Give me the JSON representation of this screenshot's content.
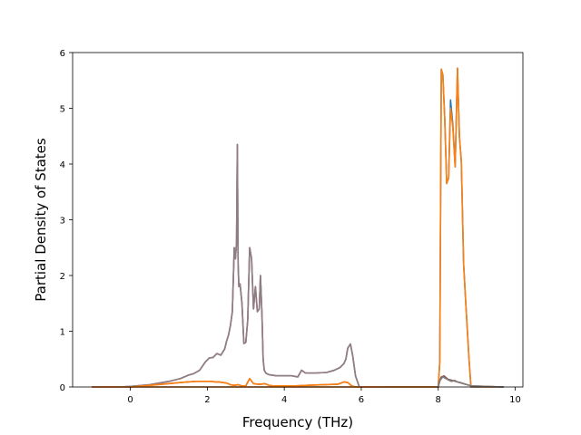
{
  "chart_data": {
    "type": "line",
    "title": "",
    "xlabel": "Frequency (THz)",
    "ylabel": "Partial Density of States",
    "xlim": [
      -1.5,
      10.2
    ],
    "ylim": [
      0,
      6
    ],
    "xticks": [
      0,
      2,
      4,
      6,
      8,
      10
    ],
    "yticks": [
      0,
      1,
      2,
      3,
      4,
      5,
      6
    ],
    "grid": false,
    "legend": "none",
    "series": [
      {
        "color": "#1f77b4",
        "x": [
          -1.0,
          8.0,
          8.04,
          8.08,
          8.12,
          8.17,
          8.22,
          8.27,
          8.32,
          8.38,
          8.44,
          8.5,
          8.55,
          8.6,
          8.66,
          8.72,
          8.8,
          8.85,
          8.9,
          9.7
        ],
        "y": [
          0,
          0,
          0.45,
          5.7,
          5.6,
          4.8,
          3.65,
          3.75,
          5.15,
          4.7,
          3.95,
          5.72,
          4.5,
          4.05,
          2.2,
          1.45,
          0.5,
          0,
          0,
          0
        ]
      },
      {
        "color": "#ff7f0e",
        "x": [
          -1.0,
          8.0,
          8.04,
          8.08,
          8.12,
          8.17,
          8.22,
          8.27,
          8.32,
          8.38,
          8.44,
          8.5,
          8.55,
          8.6,
          8.66,
          8.72,
          8.8,
          8.85,
          8.9,
          9.7
        ],
        "y": [
          0,
          0,
          0.45,
          5.7,
          5.6,
          4.8,
          3.65,
          3.75,
          5.0,
          4.65,
          3.95,
          5.72,
          4.5,
          4.05,
          2.2,
          1.45,
          0.5,
          0,
          0,
          0
        ]
      },
      {
        "color": "#8c564b",
        "x": [
          -1.0,
          0.0,
          0.5,
          1.0,
          1.3,
          1.5,
          1.7,
          1.85,
          2.0,
          2.1,
          2.2,
          2.3,
          2.4,
          2.5,
          2.6,
          2.7,
          2.8,
          2.9,
          3.0,
          3.1,
          3.2,
          3.3,
          3.4,
          3.5,
          3.6,
          3.7,
          4.0,
          4.3,
          4.6,
          5.0,
          5.4,
          5.55,
          5.65,
          5.75,
          5.85,
          6.0,
          8.0,
          8.03,
          8.08,
          8.15,
          8.25,
          8.35,
          8.45,
          8.55,
          8.65,
          8.75,
          8.85,
          9.7
        ],
        "y": [
          0,
          0,
          0.03,
          0.06,
          0.08,
          0.09,
          0.1,
          0.1,
          0.1,
          0.1,
          0.09,
          0.09,
          0.08,
          0.07,
          0.04,
          0.03,
          0.04,
          0.02,
          0.02,
          0.15,
          0.06,
          0.05,
          0.05,
          0.06,
          0.03,
          0.02,
          0.02,
          0.02,
          0.03,
          0.04,
          0.05,
          0.09,
          0.08,
          0.02,
          0,
          0,
          0,
          0.1,
          0.18,
          0.2,
          0.14,
          0.12,
          0.1,
          0.08,
          0.06,
          0.04,
          0.02,
          0
        ]
      },
      {
        "color": "#7f7f7f",
        "x": [
          -1.0,
          -0.3,
          0.0,
          0.5,
          1.0,
          1.3,
          1.5,
          1.65,
          1.8,
          1.95,
          2.05,
          2.15,
          2.25,
          2.35,
          2.45,
          2.5,
          2.55,
          2.6,
          2.65,
          2.7,
          2.73,
          2.76,
          2.78,
          2.8,
          2.82,
          2.85,
          2.9,
          2.95,
          3.0,
          3.05,
          3.1,
          3.15,
          3.2,
          3.25,
          3.3,
          3.35,
          3.38,
          3.42,
          3.45,
          3.48,
          3.52,
          3.6,
          3.8,
          4.0,
          4.2,
          4.35,
          4.45,
          4.55,
          4.8,
          5.1,
          5.3,
          5.45,
          5.55,
          5.6,
          5.65,
          5.72,
          5.78,
          5.85,
          5.95,
          6.5,
          8.0,
          8.05,
          8.12,
          8.2,
          8.28,
          8.35,
          8.42,
          8.5,
          8.58,
          8.66,
          8.75,
          8.85,
          9.7
        ],
        "y": [
          0,
          0,
          0.01,
          0.04,
          0.1,
          0.15,
          0.21,
          0.24,
          0.3,
          0.45,
          0.52,
          0.53,
          0.6,
          0.57,
          0.68,
          0.82,
          0.93,
          1.1,
          1.35,
          2.5,
          2.3,
          2.6,
          4.35,
          2.2,
          1.8,
          1.85,
          1.5,
          0.78,
          0.8,
          1.2,
          2.5,
          2.3,
          1.4,
          1.8,
          1.35,
          1.4,
          2.0,
          1.3,
          0.5,
          0.3,
          0.25,
          0.22,
          0.2,
          0.2,
          0.2,
          0.18,
          0.3,
          0.25,
          0.25,
          0.26,
          0.3,
          0.35,
          0.42,
          0.5,
          0.7,
          0.77,
          0.55,
          0.2,
          0,
          0,
          0,
          0.12,
          0.18,
          0.15,
          0.12,
          0.1,
          0.12,
          0.09,
          0.08,
          0.06,
          0.04,
          0.02,
          0
        ]
      },
      {
        "color": "#e377c2",
        "x": [
          -1.0,
          -0.3,
          0.0,
          0.5,
          1.0,
          1.3,
          1.5,
          1.65,
          1.8,
          1.95,
          2.05,
          2.15,
          2.25,
          2.35,
          2.45,
          2.5,
          2.55,
          2.6,
          2.65,
          2.7,
          2.73,
          2.76,
          2.78,
          2.8,
          2.82,
          2.85,
          2.9,
          2.95,
          3.0,
          3.05,
          3.1,
          3.15,
          3.2,
          3.25,
          3.3,
          3.35,
          3.38,
          3.42,
          3.45,
          3.48,
          3.52,
          3.6,
          3.8,
          4.0,
          4.2,
          4.35,
          4.45,
          4.55,
          4.8,
          5.1,
          5.3,
          5.45,
          5.55,
          5.6,
          5.65,
          5.72,
          5.78,
          5.85,
          5.95,
          6.5
        ],
        "y": [
          0,
          0,
          0.01,
          0.04,
          0.1,
          0.15,
          0.21,
          0.24,
          0.3,
          0.45,
          0.52,
          0.53,
          0.6,
          0.57,
          0.68,
          0.82,
          0.93,
          1.1,
          1.35,
          2.5,
          2.3,
          2.6,
          4.35,
          2.2,
          1.8,
          1.85,
          1.5,
          0.78,
          0.8,
          1.2,
          2.5,
          2.3,
          1.4,
          1.8,
          1.35,
          1.4,
          2.0,
          1.3,
          0.5,
          0.3,
          0.25,
          0.22,
          0.2,
          0.2,
          0.2,
          0.18,
          0.3,
          0.25,
          0.25,
          0.26,
          0.3,
          0.35,
          0.42,
          0.5,
          0.7,
          0.77,
          0.55,
          0.2,
          0,
          0
        ]
      },
      {
        "color": "#8c7f7f",
        "x": [
          -1.0,
          -0.3,
          0.0,
          0.5,
          1.0,
          1.3,
          1.5,
          1.65,
          1.8,
          1.95,
          2.05,
          2.15,
          2.25,
          2.35,
          2.45,
          2.5,
          2.55,
          2.6,
          2.65,
          2.7,
          2.73,
          2.76,
          2.78,
          2.8,
          2.82,
          2.85,
          2.9,
          2.95,
          3.0,
          3.05,
          3.1,
          3.15,
          3.2,
          3.25,
          3.3,
          3.35,
          3.38,
          3.42,
          3.45,
          3.48,
          3.52,
          3.6,
          3.8,
          4.0,
          4.2,
          4.35,
          4.45,
          4.55,
          4.8,
          5.1,
          5.3,
          5.45,
          5.55,
          5.6,
          5.65,
          5.72,
          5.78,
          5.85,
          5.95,
          6.5
        ],
        "y": [
          0,
          0,
          0.01,
          0.04,
          0.1,
          0.15,
          0.21,
          0.24,
          0.3,
          0.45,
          0.52,
          0.53,
          0.6,
          0.57,
          0.68,
          0.82,
          0.93,
          1.1,
          1.35,
          2.5,
          2.3,
          2.6,
          4.35,
          2.2,
          1.8,
          1.85,
          1.5,
          0.78,
          0.8,
          1.2,
          2.5,
          2.3,
          1.4,
          1.8,
          1.35,
          1.4,
          2.0,
          1.3,
          0.5,
          0.3,
          0.25,
          0.22,
          0.2,
          0.2,
          0.2,
          0.18,
          0.3,
          0.25,
          0.25,
          0.26,
          0.3,
          0.35,
          0.42,
          0.5,
          0.7,
          0.77,
          0.55,
          0.2,
          0,
          0
        ]
      },
      {
        "color": "#ff7f0e",
        "x": [
          -1.0,
          0.0,
          0.5,
          1.0,
          1.3,
          1.5,
          1.7,
          1.85,
          2.0,
          2.1,
          2.2,
          2.3,
          2.4,
          2.5,
          2.6,
          2.7,
          2.8,
          2.9,
          3.0,
          3.1,
          3.2,
          3.3,
          3.4,
          3.5,
          3.6,
          3.7,
          4.0,
          4.3,
          4.6,
          5.0,
          5.4,
          5.55,
          5.65,
          5.75,
          5.85,
          6.0,
          8.0
        ],
        "y": [
          0,
          0,
          0.03,
          0.06,
          0.08,
          0.09,
          0.1,
          0.1,
          0.1,
          0.1,
          0.09,
          0.09,
          0.08,
          0.07,
          0.04,
          0.03,
          0.04,
          0.02,
          0.02,
          0.15,
          0.06,
          0.05,
          0.05,
          0.06,
          0.03,
          0.02,
          0.02,
          0.02,
          0.03,
          0.04,
          0.05,
          0.09,
          0.08,
          0.02,
          0,
          0,
          0
        ]
      }
    ]
  }
}
